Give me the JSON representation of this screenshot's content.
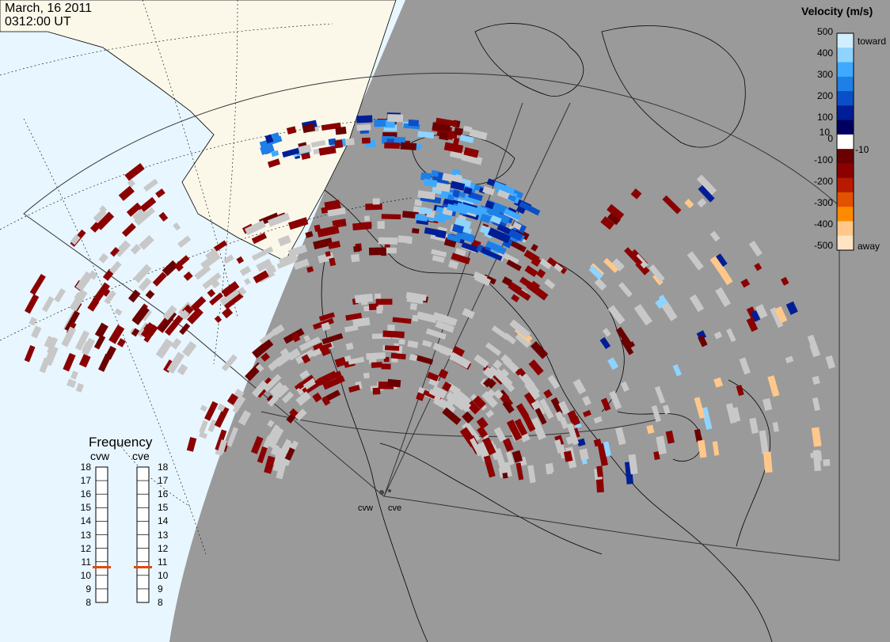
{
  "header": {
    "date": "March, 16 2011",
    "time": "0312:00 UT"
  },
  "colorbar": {
    "title": "Velocity (m/s)",
    "ticks": [
      "500",
      "400",
      "300",
      "200",
      "100",
      "10",
      "0",
      "-10",
      "-100",
      "-200",
      "-300",
      "-400",
      "-500"
    ],
    "toward_label": "toward",
    "away_label": "away",
    "colors": [
      "#cfeeff",
      "#8fd3ff",
      "#3ea9ff",
      "#1e7fe6",
      "#0b4fc8",
      "#001e96",
      "#000060",
      "#ffffff",
      "#6a0000",
      "#8b0000",
      "#b81a00",
      "#e25200",
      "#ff8a00",
      "#ffc88a",
      "#ffe4c4"
    ]
  },
  "frequency": {
    "title": "Frequency",
    "panels": [
      {
        "label": "cvw",
        "value_mhz": 10.6
      },
      {
        "label": "cve",
        "value_mhz": 10.6
      }
    ],
    "scale": [
      "18",
      "17",
      "16",
      "15",
      "14",
      "13",
      "12",
      "11",
      "10",
      "9",
      "8"
    ],
    "marker_color": "#e04a10"
  },
  "sites": [
    {
      "label": "cvw"
    },
    {
      "label": "cve"
    }
  ],
  "map_colors": {
    "night": "#9a9a9a",
    "ocean_day": "#e8f6ff",
    "land_day": "#fbf8ea",
    "ground_scatter": "#c8c8c8"
  }
}
